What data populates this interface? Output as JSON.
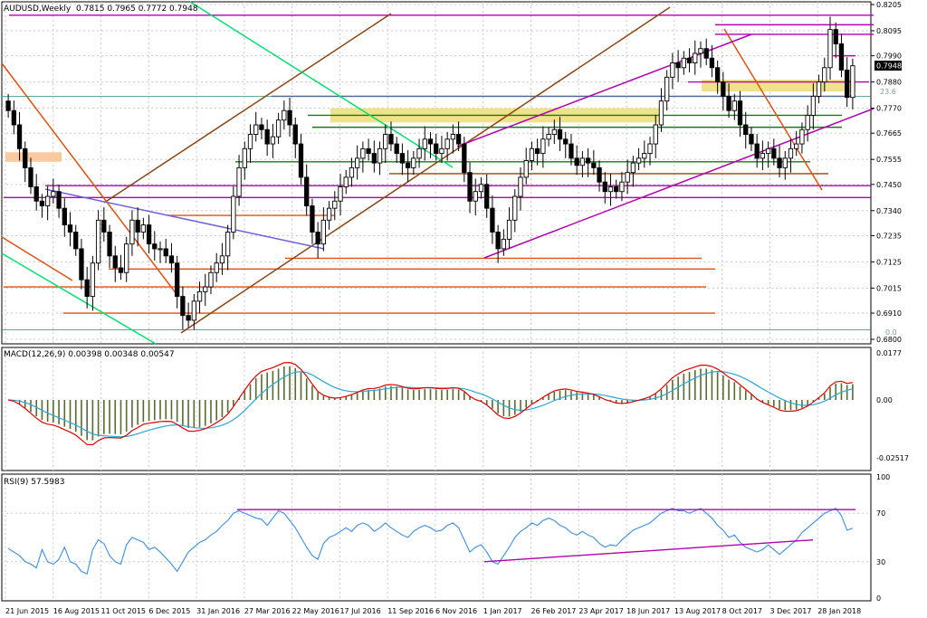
{
  "header": {
    "symbol_label": "AUDUSD,Weekly",
    "ohlc": "0.7815 0.7965 0.7772 0.7948",
    "last_price_tag": "0.7948",
    "fib_labels": [
      "23.6",
      "0.0"
    ]
  },
  "macd": {
    "label": "MACD(12,26,9) 0.00398 0.00348 0.00547",
    "axis_ticks": [
      "0.0177",
      "0.00",
      "-0.02517"
    ]
  },
  "rsi": {
    "label": "RSI(9) 57.5983",
    "axis_ticks": [
      "100",
      "70",
      "30",
      "0"
    ]
  },
  "colors": {
    "candle": "#000000",
    "macd_hist": "#556b2f",
    "macd_line": "#e00000",
    "signal_line": "#2aa6d8",
    "rsi_line": "#3a8ee6",
    "magenta": "#b000b0",
    "brown": "#8b4513",
    "orange": "#e05010",
    "green": "#1a7a1a",
    "lightgreen": "#00e070",
    "purple": "#7060e0",
    "yellow_zone": "#f0e28a",
    "peach_zone": "#f9c9a0"
  },
  "chart_data": [
    {
      "type": "candlestick",
      "title": "AUDUSD,Weekly",
      "ylim": [
        0.68,
        0.8205
      ],
      "y_ticks": [
        "0.8205",
        "0.8095",
        "0.7990",
        "0.7880",
        "0.7770",
        "0.7665",
        "0.7555",
        "0.7450",
        "0.7340",
        "0.7235",
        "0.7125",
        "0.7015",
        "0.6910",
        "0.6800"
      ],
      "x_ticks": [
        "21 Jun 2015",
        "16 Aug 2015",
        "11 Oct 2015",
        "6 Dec 2015",
        "31 Jan 2016",
        "27 Mar 2016",
        "22 May 2016",
        "17 Jul 2016",
        "11 Sep 2016",
        "6 Nov 2016",
        "1 Jan 2017",
        "26 Feb 2017",
        "23 Apr 2017",
        "18 Jun 2017",
        "13 Aug 2017",
        "8 Oct 2017",
        "3 Dec 2017",
        "28 Jan 2018"
      ],
      "close_series": [
        0.776,
        0.77,
        0.76,
        0.752,
        0.744,
        0.738,
        0.736,
        0.74,
        0.742,
        0.735,
        0.728,
        0.725,
        0.718,
        0.705,
        0.698,
        0.712,
        0.73,
        0.725,
        0.715,
        0.71,
        0.708,
        0.72,
        0.73,
        0.725,
        0.728,
        0.72,
        0.718,
        0.718,
        0.715,
        0.712,
        0.698,
        0.69,
        0.688,
        0.696,
        0.7,
        0.702,
        0.708,
        0.712,
        0.715,
        0.725,
        0.74,
        0.752,
        0.76,
        0.766,
        0.77,
        0.768,
        0.762,
        0.765,
        0.772,
        0.776,
        0.77,
        0.762,
        0.748,
        0.736,
        0.725,
        0.72,
        0.73,
        0.735,
        0.738,
        0.744,
        0.748,
        0.752,
        0.756,
        0.76,
        0.758,
        0.754,
        0.76,
        0.766,
        0.762,
        0.758,
        0.754,
        0.752,
        0.756,
        0.76,
        0.764,
        0.762,
        0.758,
        0.76,
        0.764,
        0.766,
        0.762,
        0.75,
        0.738,
        0.742,
        0.745,
        0.735,
        0.725,
        0.718,
        0.722,
        0.73,
        0.74,
        0.748,
        0.755,
        0.76,
        0.758,
        0.764,
        0.766,
        0.768,
        0.764,
        0.762,
        0.756,
        0.753,
        0.756,
        0.754,
        0.752,
        0.746,
        0.742,
        0.744,
        0.742,
        0.746,
        0.75,
        0.754,
        0.756,
        0.758,
        0.762,
        0.77,
        0.78,
        0.79,
        0.796,
        0.794,
        0.798,
        0.796,
        0.8,
        0.802,
        0.798,
        0.794,
        0.788,
        0.782,
        0.776,
        0.78,
        0.77,
        0.766,
        0.762,
        0.756,
        0.758,
        0.76,
        0.756,
        0.752,
        0.756,
        0.76,
        0.762,
        0.768,
        0.774,
        0.782,
        0.788,
        0.794,
        0.81,
        0.804,
        0.793,
        0.7815,
        0.7948
      ],
      "levels": [
        {
          "value": 0.816,
          "color": "magenta"
        },
        {
          "value": 0.812,
          "color": "magenta"
        },
        {
          "value": 0.808,
          "color": "magenta"
        },
        {
          "value": 0.799,
          "color": "magenta"
        },
        {
          "value": 0.788,
          "color": "magenta"
        },
        {
          "value": 0.782,
          "color": "magenta"
        },
        {
          "value": 0.774,
          "color": "green"
        },
        {
          "value": 0.769,
          "color": "green"
        },
        {
          "value": 0.7545,
          "color": "green"
        },
        {
          "value": 0.7495,
          "color": "brown"
        },
        {
          "value": 0.7445,
          "color": "magenta"
        },
        {
          "value": 0.7395,
          "color": "magenta"
        },
        {
          "value": 0.732,
          "color": "orange"
        },
        {
          "value": 0.714,
          "color": "orange"
        },
        {
          "value": 0.7095,
          "color": "orange"
        },
        {
          "value": 0.702,
          "color": "orange"
        },
        {
          "value": 0.691,
          "color": "orange"
        }
      ]
    },
    {
      "type": "line",
      "title": "MACD(12,26,9) 0.00398 0.00348 0.00547",
      "ylim": [
        -0.02517,
        0.0177
      ]
    },
    {
      "type": "line",
      "title": "RSI(9) 57.5983",
      "ylim": [
        0,
        100
      ],
      "reference_levels": [
        70,
        30
      ],
      "values": [
        41,
        38,
        35,
        30,
        28,
        25,
        40,
        30,
        28,
        32,
        42,
        30,
        28,
        22,
        20,
        40,
        48,
        45,
        35,
        30,
        28,
        44,
        50,
        48,
        46,
        40,
        42,
        38,
        33,
        28,
        22,
        30,
        38,
        42,
        46,
        48,
        52,
        55,
        60,
        64,
        70,
        72,
        70,
        68,
        66,
        65,
        60,
        66,
        72,
        70,
        64,
        58,
        50,
        42,
        35,
        32,
        45,
        50,
        52,
        55,
        58,
        55,
        60,
        62,
        60,
        55,
        58,
        62,
        58,
        55,
        52,
        50,
        55,
        58,
        60,
        58,
        55,
        56,
        60,
        62,
        58,
        48,
        38,
        42,
        44,
        38,
        30,
        28,
        35,
        42,
        50,
        55,
        58,
        62,
        60,
        64,
        66,
        64,
        60,
        58,
        54,
        52,
        55,
        52,
        50,
        45,
        42,
        44,
        43,
        48,
        52,
        56,
        58,
        60,
        62,
        66,
        70,
        72,
        74,
        72,
        72,
        70,
        72,
        74,
        70,
        66,
        60,
        56,
        50,
        52,
        46,
        42,
        40,
        38,
        40,
        44,
        40,
        36,
        40,
        44,
        48,
        54,
        58,
        62,
        66,
        70,
        72,
        74,
        68,
        56,
        57.6
      ]
    }
  ]
}
